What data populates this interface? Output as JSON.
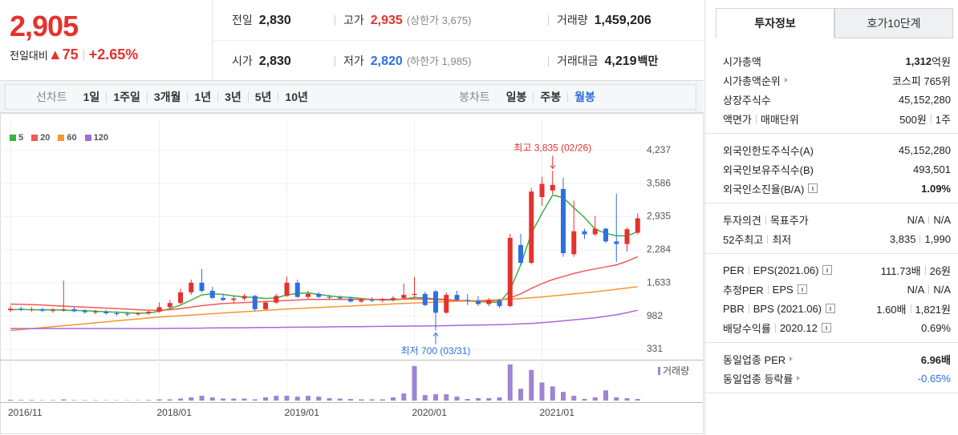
{
  "header": {
    "price": "2,905",
    "change_label": "전일대비",
    "change": "▲75",
    "change_rate": "+2.65%",
    "quote": [
      [
        {
          "label": "전일",
          "value": "2,830"
        },
        {
          "label": "고가",
          "value": "2,935",
          "tone": "up",
          "sub": "(상한가 3,675)"
        },
        {
          "label": "거래량",
          "value": "1,459,206"
        }
      ],
      [
        {
          "label": "시가",
          "value": "2,830"
        },
        {
          "label": "저가",
          "value": "2,820",
          "tone": "down",
          "sub": "(하한가 1,985)"
        },
        {
          "label": "거래대금",
          "value": "4,219",
          "unit": "백만"
        }
      ]
    ]
  },
  "period_tabs": {
    "line_label": "선차트",
    "line_periods": [
      "1일",
      "1주일",
      "3개월",
      "1년",
      "3년",
      "5년",
      "10년"
    ],
    "candle_label": "봉차트",
    "candle_periods": [
      "일봉",
      "주봉",
      "월봉"
    ],
    "active_candle": 2
  },
  "chart_data": [
    {
      "type": "candlestick",
      "categories": [
        "2016/11",
        null,
        null,
        null,
        null,
        null,
        null,
        null,
        null,
        null,
        null,
        null,
        null,
        null,
        "2018/01",
        null,
        null,
        null,
        null,
        null,
        null,
        null,
        null,
        null,
        null,
        null,
        "2019/01",
        null,
        null,
        null,
        null,
        null,
        null,
        null,
        null,
        null,
        null,
        null,
        "2020/01",
        null,
        null,
        null,
        null,
        null,
        null,
        null,
        null,
        null,
        null,
        null,
        "2021/01",
        null,
        null,
        null,
        null,
        null,
        null,
        null,
        null,
        null
      ],
      "open": [
        1100,
        1130,
        1110,
        1120,
        1090,
        1100,
        1120,
        1080,
        1060,
        1070,
        1040,
        1030,
        1020,
        1040,
        1070,
        1160,
        1240,
        1450,
        1640,
        1480,
        1340,
        1300,
        1330,
        1380,
        1120,
        1250,
        1380,
        1640,
        1360,
        1420,
        1360,
        1350,
        1330,
        1270,
        1300,
        1290,
        1310,
        1340,
        1400,
        1420,
        1470,
        1050,
        1400,
        1300,
        1280,
        1220,
        1300,
        1180,
        2380,
        2030,
        3320,
        3450,
        3480,
        2200,
        2650,
        2590,
        2700,
        2450,
        2400,
        2620
      ],
      "high": [
        1180,
        1170,
        1160,
        1150,
        1140,
        1680,
        1160,
        1120,
        1110,
        1100,
        1080,
        1070,
        1060,
        1100,
        1250,
        1300,
        1520,
        1700,
        1910,
        1560,
        1420,
        1380,
        1420,
        1400,
        1280,
        1420,
        1760,
        1700,
        1480,
        1450,
        1400,
        1390,
        1360,
        1340,
        1350,
        1340,
        1380,
        1620,
        1750,
        1460,
        1500,
        1450,
        1480,
        1420,
        1380,
        1340,
        1330,
        2600,
        2600,
        3500,
        3720,
        3835,
        3700,
        3250,
        2700,
        2950,
        2720,
        3390,
        2730,
        3000
      ],
      "low": [
        1060,
        1080,
        1070,
        1060,
        1050,
        1070,
        1060,
        1030,
        1020,
        1010,
        990,
        980,
        990,
        1010,
        1050,
        1120,
        1220,
        1400,
        1450,
        1320,
        1280,
        1250,
        1290,
        1080,
        1100,
        1220,
        1360,
        1340,
        1320,
        1340,
        1310,
        1300,
        1250,
        1240,
        1260,
        1250,
        1270,
        1300,
        1350,
        1180,
        700,
        1030,
        1280,
        1200,
        1180,
        1180,
        1140,
        1160,
        1980,
        2000,
        3150,
        3380,
        2150,
        2150,
        2500,
        2560,
        2420,
        2050,
        2250,
        2590
      ],
      "close": [
        1130,
        1110,
        1120,
        1090,
        1100,
        1120,
        1080,
        1060,
        1070,
        1040,
        1030,
        1020,
        1040,
        1070,
        1160,
        1240,
        1450,
        1640,
        1480,
        1340,
        1300,
        1330,
        1380,
        1120,
        1250,
        1380,
        1640,
        1360,
        1420,
        1360,
        1350,
        1330,
        1270,
        1300,
        1290,
        1310,
        1340,
        1400,
        1420,
        1200,
        1050,
        1400,
        1300,
        1280,
        1220,
        1300,
        1180,
        2520,
        2030,
        3430,
        3580,
        3560,
        2220,
        2650,
        2590,
        2700,
        2450,
        2400,
        2690,
        2905
      ],
      "up_color": "#e5322d",
      "down_color": "#2f6fe0",
      "series": [
        {
          "name": "5",
          "color": "#3cb043",
          "values": [
            1110,
            1115,
            1110,
            1105,
            1110,
            1100,
            1095,
            1090,
            1080,
            1070,
            1060,
            1050,
            1040,
            1045,
            1080,
            1130,
            1200,
            1300,
            1400,
            1420,
            1410,
            1380,
            1360,
            1350,
            1330,
            1340,
            1400,
            1430,
            1440,
            1410,
            1380,
            1360,
            1350,
            1330,
            1310,
            1300,
            1300,
            1320,
            1350,
            1340,
            1320,
            1310,
            1290,
            1280,
            1270,
            1260,
            1250,
            1500,
            1990,
            2610,
            3000,
            3360,
            3310,
            3110,
            2920,
            2690,
            2610,
            2560,
            2560,
            2640
          ]
        },
        {
          "name": "20",
          "color": "#ef5a5a",
          "values": [
            1220,
            1215,
            1210,
            1200,
            1190,
            1180,
            1170,
            1160,
            1150,
            1140,
            1130,
            1120,
            1110,
            1100,
            1100,
            1110,
            1130,
            1160,
            1190,
            1210,
            1230,
            1240,
            1250,
            1260,
            1270,
            1280,
            1290,
            1300,
            1310,
            1310,
            1310,
            1310,
            1310,
            1310,
            1310,
            1310,
            1310,
            1320,
            1320,
            1320,
            1310,
            1300,
            1290,
            1290,
            1280,
            1280,
            1290,
            1340,
            1420,
            1530,
            1620,
            1700,
            1760,
            1820,
            1870,
            1910,
            1950,
            1990,
            2060,
            2150
          ]
        },
        {
          "name": "60",
          "color": "#f5962f",
          "values": [
            700,
            719,
            738,
            757,
            776,
            795,
            814,
            833,
            852,
            871,
            890,
            909,
            928,
            947,
            966,
            979,
            992,
            1005,
            1018,
            1031,
            1044,
            1057,
            1070,
            1083,
            1096,
            1109,
            1122,
            1132,
            1142,
            1152,
            1162,
            1172,
            1182,
            1192,
            1202,
            1212,
            1222,
            1232,
            1242,
            1250,
            1258,
            1266,
            1274,
            1282,
            1290,
            1298,
            1306,
            1314,
            1330,
            1345,
            1360,
            1380,
            1400,
            1420,
            1440,
            1460,
            1485,
            1510,
            1535,
            1560
          ]
        },
        {
          "name": "120",
          "color": "#a46ad8",
          "values": [
            740,
            740,
            740,
            740,
            740,
            740,
            740,
            740,
            740,
            740,
            740,
            740,
            740,
            740,
            740,
            742,
            744,
            746,
            748,
            750,
            752,
            754,
            756,
            758,
            760,
            762,
            764,
            766,
            768,
            770,
            772,
            774,
            776,
            778,
            780,
            782,
            784,
            786,
            788,
            790,
            792,
            796,
            800,
            804,
            808,
            812,
            816,
            822,
            830,
            840,
            855,
            870,
            890,
            910,
            930,
            950,
            980,
            1010,
            1050,
            1100
          ]
        }
      ],
      "ylim": [
        159,
        4800
      ],
      "yticks": [
        331,
        982,
        {
          "value": 1633,
          "label": "1,633"
        },
        {
          "value": 2284,
          "label": "2,284"
        },
        {
          "value": 2935,
          "label": "2,935"
        },
        {
          "value": 3586,
          "label": "3,586"
        },
        {
          "value": 4237,
          "label": "4,237"
        }
      ],
      "grid": true,
      "annotations": [
        {
          "text": "최고 3,835 (02/26)",
          "value": 3835,
          "kind": "high",
          "color": "#e5322d"
        },
        {
          "text": "최저 700 (03/31)",
          "value": 700,
          "kind": "low",
          "color": "#2f6fe0"
        }
      ]
    },
    {
      "type": "bar",
      "name": "거래량",
      "color": "#9d84d4",
      "values": [
        2000000,
        1500000,
        1500000,
        1000000,
        1200000,
        3000000,
        1200000,
        1000000,
        1000000,
        800000,
        800000,
        800000,
        900000,
        1500000,
        3000000,
        3000000,
        5000000,
        8000000,
        12000000,
        8000000,
        5000000,
        5000000,
        5000000,
        3000000,
        8000000,
        12000000,
        12000000,
        10000000,
        12000000,
        10000000,
        6000000,
        5000000,
        4000000,
        3000000,
        3000000,
        3000000,
        8000000,
        18000000,
        88000000,
        14000000,
        16000000,
        16000000,
        10000000,
        4000000,
        6000000,
        6000000,
        8000000,
        92000000,
        30000000,
        78000000,
        46000000,
        36000000,
        22000000,
        12000000,
        4000000,
        8000000,
        26000000,
        8000000,
        6000000,
        4000000
      ],
      "ylim": [
        0,
        100000000
      ]
    }
  ],
  "side_panel": {
    "tabs": [
      "투자정보",
      "호가10단계"
    ],
    "active_tab": 0,
    "sections": [
      [
        {
          "label": [
            "시가총액"
          ],
          "value": [
            "1,312"
          ],
          "unit": "억원",
          "bold": true
        },
        {
          "label": [
            "시가총액순위"
          ],
          "more": true,
          "value": [
            "코스피 765위"
          ]
        },
        {
          "label": [
            "상장주식수"
          ],
          "value": [
            "45,152,280"
          ]
        },
        {
          "label": [
            "액면가",
            "매매단위"
          ],
          "value": [
            "500원",
            "1주"
          ]
        }
      ],
      [
        {
          "label": [
            "외국인한도주식수(A)"
          ],
          "value": [
            "45,152,280"
          ]
        },
        {
          "label": [
            "외국인보유주식수(B)"
          ],
          "value": [
            "493,501"
          ]
        },
        {
          "label": [
            "외국인소진율(B/A)"
          ],
          "help": true,
          "value": [
            "1.09%"
          ],
          "bold": true
        }
      ],
      [
        {
          "label": [
            "투자의견",
            "목표주가"
          ],
          "value": [
            "N/A",
            "N/A"
          ]
        },
        {
          "label": [
            "52주최고",
            "최저"
          ],
          "value": [
            "3,835",
            "1,990"
          ]
        }
      ],
      [
        {
          "label": [
            "PER",
            "EPS(2021.06)"
          ],
          "help": true,
          "value": [
            "111.73배",
            "26원"
          ]
        },
        {
          "label": [
            "추정PER",
            "EPS"
          ],
          "help": true,
          "value": [
            "N/A",
            "N/A"
          ]
        },
        {
          "label": [
            "PBR",
            "BPS (2021.06)"
          ],
          "help": true,
          "value": [
            "1.60배",
            "1,821원"
          ]
        },
        {
          "label": [
            "배당수익률",
            "2020.12"
          ],
          "help": true,
          "value": [
            "0.69%"
          ]
        }
      ],
      [
        {
          "label": [
            "동일업종 PER"
          ],
          "more": true,
          "value": [
            "6.96배"
          ],
          "bold": true
        },
        {
          "label": [
            "동일업종 등락률"
          ],
          "more": true,
          "value": [
            "-0.65%"
          ],
          "tone": "down"
        }
      ]
    ]
  }
}
